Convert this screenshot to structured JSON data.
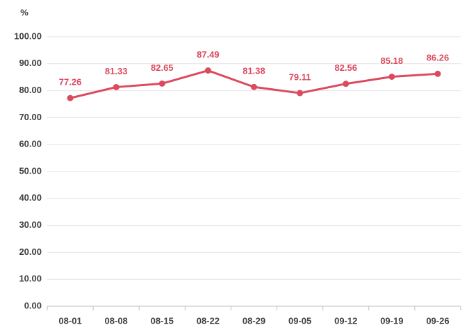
{
  "chart_data": {
    "type": "line",
    "y_label": "%",
    "categories": [
      "08-01",
      "08-08",
      "08-15",
      "08-22",
      "08-29",
      "09-05",
      "09-12",
      "09-19",
      "09-26"
    ],
    "values": [
      77.26,
      81.33,
      82.65,
      87.49,
      81.38,
      79.11,
      82.56,
      85.18,
      86.26
    ],
    "color": "#dc4a5e",
    "ylim": [
      0,
      100
    ],
    "yticks": [
      {
        "value": 0,
        "label": "0.00"
      },
      {
        "value": 10,
        "label": "10.00"
      },
      {
        "value": 20,
        "label": "20.00"
      },
      {
        "value": 30,
        "label": "30.00"
      },
      {
        "value": 40,
        "label": "40.00"
      },
      {
        "value": 50,
        "label": "50.00"
      },
      {
        "value": 60,
        "label": "60.00"
      },
      {
        "value": 70,
        "label": "70.00"
      },
      {
        "value": 80,
        "label": "80.00"
      },
      {
        "value": 90,
        "label": "90.00"
      },
      {
        "value": 100,
        "label": "100.00"
      }
    ],
    "grid": true
  }
}
